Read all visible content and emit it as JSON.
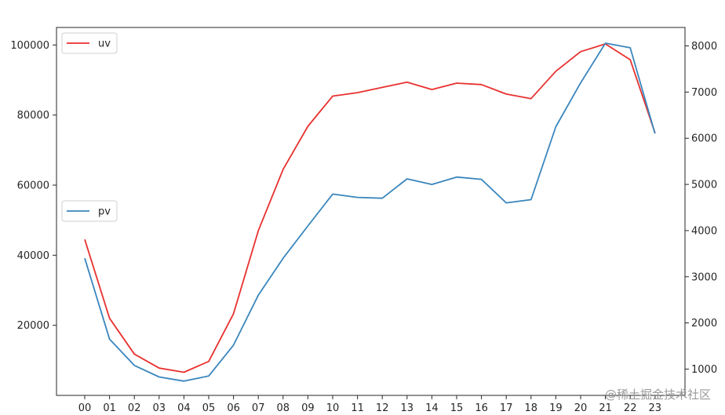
{
  "chart_data": {
    "type": "line",
    "categories": [
      "00",
      "01",
      "02",
      "03",
      "04",
      "05",
      "06",
      "07",
      "08",
      "09",
      "10",
      "11",
      "12",
      "13",
      "14",
      "15",
      "16",
      "17",
      "18",
      "19",
      "20",
      "21",
      "22",
      "23"
    ],
    "series": [
      {
        "name": "uv",
        "axis": "left",
        "color": "#e8312f",
        "values": [
          44500,
          22000,
          11800,
          7800,
          6600,
          9700,
          23300,
          47000,
          64500,
          76800,
          85400,
          86400,
          87900,
          89400,
          87300,
          89100,
          88700,
          86000,
          84700,
          92500,
          98100,
          100300,
          95800,
          74900
        ]
      },
      {
        "name": "pv",
        "axis": "right",
        "color": "#3a86bd",
        "values": [
          3400,
          1650,
          1080,
          830,
          740,
          850,
          1520,
          2600,
          3400,
          4100,
          4790,
          4720,
          4700,
          5120,
          5000,
          5160,
          5110,
          4600,
          4670,
          6250,
          7200,
          8060,
          7960,
          6100
        ]
      }
    ],
    "left_axis": {
      "ylim": [
        0,
        105000
      ],
      "ticks": [
        20000,
        40000,
        60000,
        80000,
        100000
      ]
    },
    "right_axis": {
      "ylim": [
        430,
        8400
      ],
      "ticks": [
        1000,
        2000,
        3000,
        4000,
        5000,
        6000,
        7000,
        8000
      ]
    },
    "grid": false,
    "legends": [
      {
        "series": "uv",
        "placement": "upper-left"
      },
      {
        "series": "pv",
        "placement": "center-left"
      }
    ]
  },
  "watermark": "@稀土掘金技术社区"
}
